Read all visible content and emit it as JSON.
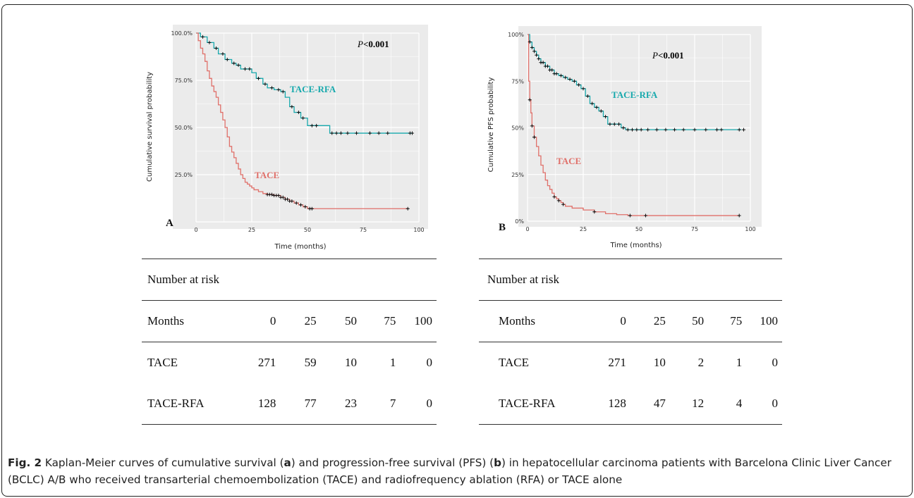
{
  "panels": [
    {
      "id": "A",
      "panel_label": "A",
      "ylabel": "Cumulative survival probability",
      "xlabel": "Time (months)",
      "xticks": [
        "0",
        "25",
        "50",
        "75",
        "100"
      ],
      "yticks": [
        "25.0%",
        "50.0%",
        "75.0%",
        "100.0%"
      ],
      "pvalue_prefix": "P",
      "pvalue_suffix": "<0.001",
      "label_tace": "TACE",
      "label_tacerfa": "TACE-RFA"
    },
    {
      "id": "B",
      "panel_label": "B",
      "ylabel": "Cumulative PFS probability",
      "xlabel": "Time (months)",
      "xticks": [
        "0",
        "25",
        "50",
        "75",
        "100"
      ],
      "yticks": [
        "0%",
        "25%",
        "50%",
        "75%",
        "100%"
      ],
      "pvalue_prefix": "P",
      "pvalue_suffix": "<0.001",
      "label_tace": "TACE",
      "label_tacerfa": "TACE-RFA"
    }
  ],
  "colors": {
    "tace": "#e0706a",
    "tacerfa": "#18a9ad",
    "panel_bg": "#ebebeb",
    "grid": "#ffffff",
    "censor": "#000000"
  },
  "chart_data": [
    {
      "type": "line",
      "title": "",
      "xlabel": "Time (months)",
      "ylabel": "Cumulative survival probability",
      "xlim": [
        0,
        100
      ],
      "ylim": [
        0,
        1
      ],
      "grid": true,
      "annotation": "P<0.001",
      "series": [
        {
          "name": "TACE-RFA",
          "step": true,
          "x": [
            0,
            2,
            5,
            8,
            10,
            13,
            16,
            18,
            20,
            25,
            27,
            30,
            32,
            35,
            38,
            40,
            42,
            44,
            47,
            50,
            55,
            58,
            60,
            70,
            97
          ],
          "y": [
            1.0,
            0.98,
            0.95,
            0.92,
            0.89,
            0.86,
            0.84,
            0.83,
            0.81,
            0.79,
            0.76,
            0.73,
            0.71,
            0.7,
            0.69,
            0.66,
            0.61,
            0.58,
            0.55,
            0.51,
            0.51,
            0.51,
            0.47,
            0.47,
            0.47
          ],
          "censored_x": [
            3,
            6,
            9,
            12,
            14,
            17,
            19,
            22,
            24,
            28,
            31,
            34,
            37,
            39,
            43,
            46,
            48,
            52,
            54,
            61,
            63,
            65,
            68,
            72,
            78,
            82,
            86,
            96,
            97
          ]
        },
        {
          "name": "TACE",
          "step": true,
          "x": [
            0,
            1,
            2,
            3,
            4,
            5,
            6,
            7,
            8,
            9,
            10,
            11,
            12,
            13,
            14,
            15,
            16,
            17,
            18,
            19,
            20,
            21,
            22,
            23,
            24,
            25,
            26,
            28,
            30,
            32,
            35,
            38,
            40,
            42,
            44,
            46,
            48,
            50,
            95
          ],
          "y": [
            1.0,
            0.96,
            0.92,
            0.89,
            0.85,
            0.8,
            0.76,
            0.72,
            0.69,
            0.66,
            0.62,
            0.58,
            0.54,
            0.5,
            0.45,
            0.4,
            0.37,
            0.34,
            0.31,
            0.28,
            0.25,
            0.23,
            0.21,
            0.2,
            0.19,
            0.18,
            0.17,
            0.16,
            0.15,
            0.145,
            0.14,
            0.13,
            0.12,
            0.11,
            0.1,
            0.09,
            0.08,
            0.07,
            0.07
          ],
          "censored_x": [
            32,
            33,
            34,
            35,
            36,
            37,
            38,
            39,
            40,
            41,
            42,
            43,
            45,
            47,
            49,
            51,
            52,
            95
          ]
        }
      ]
    },
    {
      "type": "line",
      "title": "",
      "xlabel": "Time (months)",
      "ylabel": "Cumulative PFS probability",
      "xlim": [
        0,
        100
      ],
      "ylim": [
        0,
        1
      ],
      "grid": true,
      "annotation": "P<0.001",
      "series": [
        {
          "name": "TACE-RFA",
          "step": true,
          "x": [
            0,
            1,
            2,
            3,
            4,
            5,
            6,
            8,
            10,
            12,
            14,
            16,
            18,
            20,
            22,
            24,
            26,
            28,
            30,
            32,
            34,
            36,
            40,
            42,
            44,
            45,
            60,
            96
          ],
          "y": [
            1.0,
            0.96,
            0.93,
            0.91,
            0.89,
            0.87,
            0.85,
            0.83,
            0.81,
            0.79,
            0.78,
            0.77,
            0.76,
            0.75,
            0.73,
            0.71,
            0.67,
            0.63,
            0.61,
            0.59,
            0.56,
            0.52,
            0.52,
            0.5,
            0.49,
            0.49,
            0.49,
            0.49
          ],
          "censored_x": [
            1,
            2,
            3,
            4,
            5,
            6,
            7,
            8,
            9,
            10,
            11,
            12,
            13,
            15,
            17,
            19,
            21,
            23,
            25,
            27,
            29,
            31,
            33,
            35,
            37,
            39,
            41,
            43,
            45,
            47,
            49,
            51,
            54,
            58,
            62,
            66,
            70,
            75,
            80,
            85,
            87,
            95,
            97
          ]
        },
        {
          "name": "TACE",
          "step": true,
          "x": [
            0,
            0.5,
            1,
            1.5,
            2,
            3,
            4,
            5,
            6,
            7,
            8,
            9,
            10,
            11,
            12,
            13,
            14,
            15,
            16,
            17,
            18,
            20,
            25,
            30,
            35,
            40,
            45,
            95
          ],
          "y": [
            1.0,
            0.75,
            0.65,
            0.58,
            0.51,
            0.45,
            0.4,
            0.35,
            0.3,
            0.26,
            0.22,
            0.19,
            0.17,
            0.15,
            0.13,
            0.12,
            0.11,
            0.1,
            0.09,
            0.08,
            0.08,
            0.07,
            0.06,
            0.05,
            0.04,
            0.035,
            0.03,
            0.03
          ],
          "censored_x": [
            1,
            2,
            3,
            12,
            14,
            16,
            30,
            46,
            53,
            95
          ]
        }
      ]
    }
  ],
  "risk_tables": [
    {
      "title": "Number at risk",
      "header": [
        "Months",
        "0",
        "25",
        "50",
        "75",
        "100"
      ],
      "rows": [
        [
          "TACE",
          "271",
          "59",
          "10",
          "1",
          "0"
        ],
        [
          "TACE-RFA",
          "128",
          "77",
          "23",
          "7",
          "0"
        ]
      ]
    },
    {
      "title": "Number at risk",
      "header": [
        "Months",
        "0",
        "25",
        "50",
        "75",
        "100"
      ],
      "rows": [
        [
          "TACE",
          "271",
          "10",
          "2",
          "1",
          "0"
        ],
        [
          "TACE-RFA",
          "128",
          "47",
          "12",
          "4",
          "0"
        ]
      ]
    }
  ],
  "caption": {
    "label": "Fig. 2",
    "text_1": " Kaplan-Meier curves of cumulative survival (",
    "bold_a": "a",
    "text_2": ") and progression-free survival (PFS) (",
    "bold_b": "b",
    "text_3": ") in hepatocellular carcinoma patients with Barcelona Clinic Liver Cancer (BCLC) A/B who received transarterial chemoembolization (TACE) and radiofrequency ablation (RFA) or TACE alone"
  }
}
